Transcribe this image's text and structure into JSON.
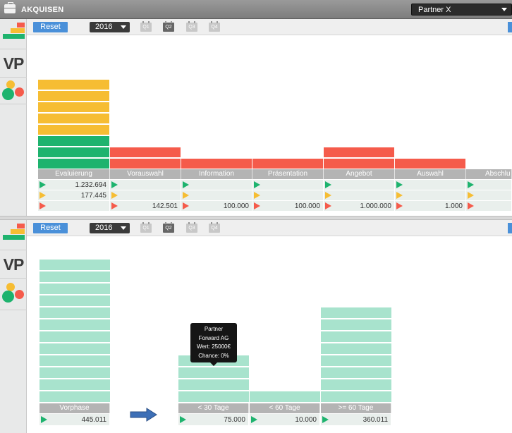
{
  "window": {
    "title": "AKQUISEN",
    "partner_select": "Partner X"
  },
  "sidebar": {
    "vp_label": "VP"
  },
  "toolbar": {
    "reset_label": "Reset",
    "year": "2016",
    "quarters": [
      "Q1",
      "Q2",
      "Q3",
      "Q4"
    ],
    "active_quarter": "Q2"
  },
  "pipeline": {
    "stages": [
      "Evaluierung",
      "Vorauswahl",
      "Information",
      "Präsentation",
      "Angebot",
      "Auswahl",
      "Abschlu"
    ],
    "rows": [
      {
        "status": "green",
        "values": [
          "1.232.694",
          "",
          "",
          "",
          "",
          "",
          ""
        ]
      },
      {
        "status": "yellow",
        "values": [
          "177.445",
          "",
          "",
          "",
          "",
          "",
          ""
        ]
      },
      {
        "status": "red",
        "values": [
          "",
          "142.501",
          "100.000",
          "100.000",
          "1.000.000",
          "1.000",
          ""
        ]
      }
    ],
    "bars": [
      {
        "stage": "Evaluierung",
        "yellow_segments": 5,
        "green_segments": 3,
        "red_segments": 0
      },
      {
        "stage": "Vorauswahl",
        "yellow_segments": 0,
        "green_segments": 0,
        "red_segments": 2
      },
      {
        "stage": "Information",
        "yellow_segments": 0,
        "green_segments": 0,
        "red_segments": 1
      },
      {
        "stage": "Präsentation",
        "yellow_segments": 0,
        "green_segments": 0,
        "red_segments": 1
      },
      {
        "stage": "Angebot",
        "yellow_segments": 0,
        "green_segments": 0,
        "red_segments": 2
      },
      {
        "stage": "Auswahl",
        "yellow_segments": 0,
        "green_segments": 0,
        "red_segments": 1
      },
      {
        "stage": "Abschlu",
        "yellow_segments": 0,
        "green_segments": 0,
        "red_segments": 0
      }
    ]
  },
  "aging": {
    "stages": [
      {
        "label": "Vorphase",
        "value": "445.011",
        "segments": 12
      },
      {
        "label": "< 30 Tage",
        "value": "75.000",
        "segments": 4
      },
      {
        "label": "< 60 Tage",
        "value": "10.000",
        "segments": 1
      },
      {
        "label": ">= 60 Tage",
        "value": "360.011",
        "segments": 8
      }
    ],
    "tooltip": {
      "line1": "Partner",
      "line2": "Forward AG",
      "line3": "Wert: 25000€",
      "line4": "Chance: 0%"
    }
  },
  "colors": {
    "yellow": "#f6bd33",
    "green": "#1eb36e",
    "red": "#f55b4b",
    "mint": "#a8e3cd",
    "accent": "#4a90d9"
  }
}
